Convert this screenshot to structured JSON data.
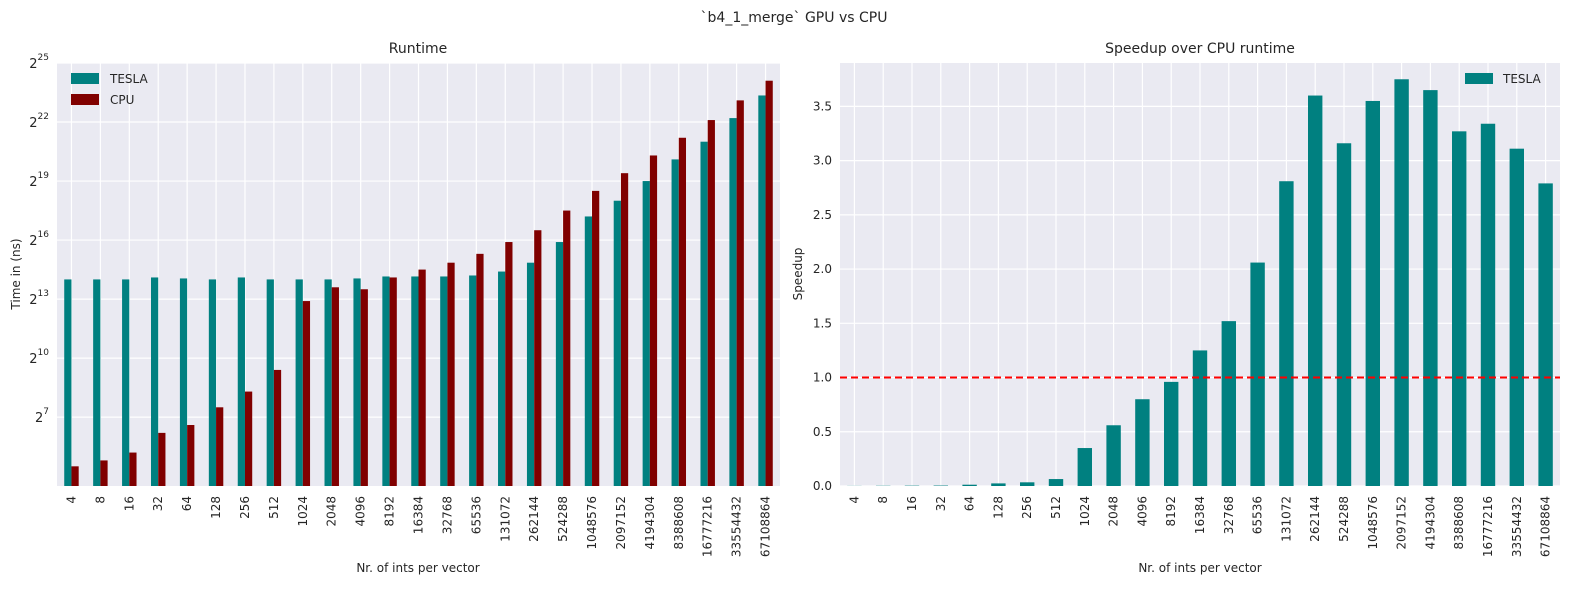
{
  "suptitle": "`b4_1_merge` GPU vs CPU",
  "colors": {
    "tesla": "#008080",
    "cpu": "#800000",
    "reference": "#ff0000",
    "panel_bg": "#eaeaf2",
    "grid": "#ffffff"
  },
  "chart_data": [
    {
      "type": "bar",
      "title": "Runtime",
      "xlabel": "Nr. of ints per vector",
      "ylabel": "Time in (ns)",
      "yscale": "log2",
      "ylim_exp": [
        3.5,
        25
      ],
      "ytick_exponents": [
        7,
        10,
        13,
        16,
        19,
        22,
        25
      ],
      "ytick_base": "2",
      "grid": true,
      "legend_position": "upper-left",
      "categories": [
        "4",
        "8",
        "16",
        "32",
        "64",
        "128",
        "256",
        "512",
        "1024",
        "2048",
        "4096",
        "8192",
        "16384",
        "32768",
        "65536",
        "131072",
        "262144",
        "524288",
        "1048576",
        "2097152",
        "4194304",
        "8388608",
        "16777216",
        "33554432",
        "67108864"
      ],
      "series": [
        {
          "name": "TESLA",
          "color": "#008080",
          "log2_values": [
            14.0,
            14.0,
            14.0,
            14.1,
            14.05,
            14.0,
            14.1,
            14.0,
            14.0,
            14.0,
            14.05,
            14.15,
            14.15,
            14.15,
            14.2,
            14.4,
            14.85,
            15.9,
            17.2,
            18.0,
            19.0,
            20.1,
            21.0,
            22.2,
            23.35
          ]
        },
        {
          "name": "CPU",
          "color": "#800000",
          "log2_values": [
            4.5,
            4.8,
            5.2,
            6.2,
            6.6,
            7.5,
            8.3,
            9.4,
            12.9,
            13.6,
            13.5,
            14.1,
            14.5,
            14.85,
            15.3,
            15.9,
            16.5,
            17.5,
            18.5,
            19.4,
            20.3,
            21.2,
            22.1,
            23.1,
            24.1
          ]
        }
      ]
    },
    {
      "type": "bar",
      "title": "Speedup over CPU runtime",
      "xlabel": "Nr. of ints per vector",
      "ylabel": "Speedup",
      "ylim": [
        0,
        3.9
      ],
      "yticks": [
        "0.0",
        "0.5",
        "1.0",
        "1.5",
        "2.0",
        "2.5",
        "3.0",
        "3.5"
      ],
      "grid": true,
      "legend_position": "upper-right",
      "reference_line": {
        "y": 1.0,
        "style": "dashed",
        "color": "#ff0000"
      },
      "categories": [
        "4",
        "8",
        "16",
        "32",
        "64",
        "128",
        "256",
        "512",
        "1024",
        "2048",
        "4096",
        "8192",
        "16384",
        "32768",
        "65536",
        "131072",
        "262144",
        "524288",
        "1048576",
        "2097152",
        "4194304",
        "8388608",
        "16777216",
        "33554432",
        "67108864"
      ],
      "series": [
        {
          "name": "TESLA",
          "color": "#008080",
          "values": [
            0.001,
            0.002,
            0.003,
            0.004,
            0.012,
            0.024,
            0.034,
            0.064,
            0.35,
            0.56,
            0.8,
            0.96,
            1.25,
            1.52,
            2.06,
            2.81,
            3.6,
            3.16,
            3.55,
            3.75,
            3.65,
            3.27,
            3.34,
            3.11,
            2.79
          ]
        }
      ]
    }
  ]
}
